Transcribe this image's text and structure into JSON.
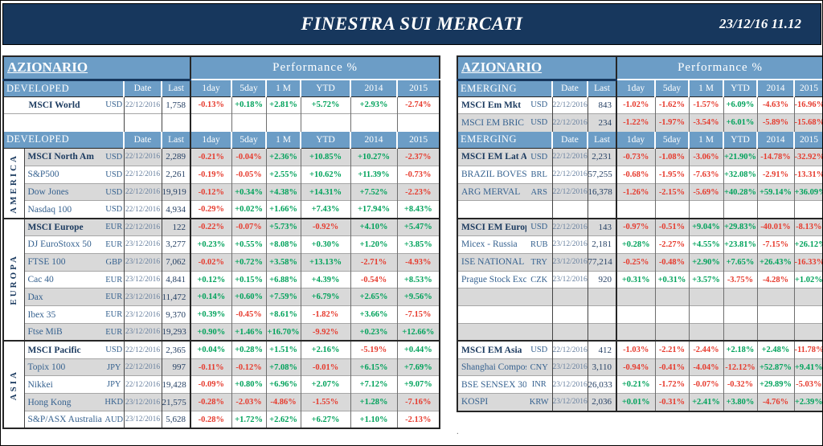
{
  "title_bar": {
    "title": "FINESTRA SUI MERCATI",
    "datetime": "23/12/16 11.12"
  },
  "colors": {
    "navy": "#17375d",
    "steel_blue": "#6c9dc6",
    "row_gray": "#d9d9d9",
    "positive_green": "#00a25b",
    "negative_red": "#e63b2e"
  },
  "columns": {
    "date_label": "Date",
    "last_label": "Last",
    "performance_title": "Performance  %",
    "perf_labels": [
      "1day",
      "5day",
      "1 M",
      "YTD",
      "2014",
      "2015"
    ]
  },
  "footnote": {
    "dot": "."
  },
  "left_panel": {
    "azionario_label": "AZIONARIO",
    "has_group_col": true,
    "rows": [
      {
        "t": "band"
      },
      {
        "t": "head",
        "label": "DEVELOPED"
      },
      {
        "t": "data",
        "name": "MSCI World",
        "bold": true,
        "center": true,
        "grouped": false,
        "ccy": "USD",
        "date": "22/12/2016",
        "last": "1,758",
        "perf": [
          "-0.13%",
          "+0.18%",
          "+2.81%",
          "+5.72%",
          "+2.93%",
          "-2.74%"
        ],
        "shade": false
      },
      {
        "t": "empty",
        "grouped": false,
        "shade": false
      },
      {
        "t": "head",
        "label": "DEVELOPED"
      },
      {
        "t": "data",
        "name": "MSCI North Am",
        "bold": true,
        "grouped": true,
        "group_start": {
          "label": "AMERICA",
          "span": 4
        },
        "ccy": "USD",
        "date": "22/12/2016",
        "last": "2,289",
        "perf": [
          "-0.21%",
          "-0.04%",
          "+2.36%",
          "+10.85%",
          "+10.27%",
          "-2.37%"
        ],
        "shade": true
      },
      {
        "t": "data",
        "name": "S&P500",
        "grouped": true,
        "ccy": "USD",
        "date": "22/12/2016",
        "last": "2,261",
        "perf": [
          "-0.19%",
          "-0.05%",
          "+2.55%",
          "+10.62%",
          "+11.39%",
          "-0.73%"
        ],
        "shade": false
      },
      {
        "t": "data",
        "name": "Dow Jones",
        "grouped": true,
        "ccy": "USD",
        "date": "22/12/2016",
        "last": "19,919",
        "perf": [
          "-0.12%",
          "+0.34%",
          "+4.38%",
          "+14.31%",
          "+7.52%",
          "-2.23%"
        ],
        "shade": true
      },
      {
        "t": "data",
        "name": "Nasdaq 100",
        "grouped": true,
        "ccy": "USD",
        "date": "22/12/2016",
        "last": "4,934",
        "perf": [
          "-0.29%",
          "+0.02%",
          "+1.66%",
          "+7.43%",
          "+17.94%",
          "+8.43%"
        ],
        "shade": false
      },
      {
        "t": "data",
        "name": "MSCI Europe",
        "bold": true,
        "thick_top": true,
        "grouped": true,
        "group_start": {
          "label": "EUROPA",
          "span": 7
        },
        "ccy": "EUR",
        "date": "22/12/2016",
        "last": "122",
        "perf": [
          "-0.22%",
          "-0.07%",
          "+5.73%",
          "-0.92%",
          "+4.10%",
          "+5.47%"
        ],
        "shade": true
      },
      {
        "t": "data",
        "name": "DJ EuroStoxx 50",
        "grouped": true,
        "ccy": "EUR",
        "date": "23/12/2016",
        "last": "3,277",
        "perf": [
          "+0.23%",
          "+0.55%",
          "+8.08%",
          "+0.30%",
          "+1.20%",
          "+3.85%"
        ],
        "shade": false
      },
      {
        "t": "data",
        "name": "FTSE 100",
        "grouped": true,
        "ccy": "GBP",
        "date": "23/12/2016",
        "last": "7,062",
        "perf": [
          "-0.02%",
          "+0.72%",
          "+3.58%",
          "+13.13%",
          "-2.71%",
          "-4.93%"
        ],
        "shade": true
      },
      {
        "t": "data",
        "name": "Cac 40",
        "grouped": true,
        "ccy": "EUR",
        "date": "23/12/2016",
        "last": "4,841",
        "perf": [
          "+0.12%",
          "+0.15%",
          "+6.88%",
          "+4.39%",
          "-0.54%",
          "+8.53%"
        ],
        "shade": false
      },
      {
        "t": "data",
        "name": "Dax",
        "grouped": true,
        "ccy": "EUR",
        "date": "23/12/2016",
        "last": "11,472",
        "perf": [
          "+0.14%",
          "+0.60%",
          "+7.59%",
          "+6.79%",
          "+2.65%",
          "+9.56%"
        ],
        "shade": true
      },
      {
        "t": "data",
        "name": "Ibex 35",
        "grouped": true,
        "ccy": "EUR",
        "date": "23/12/2016",
        "last": "9,370",
        "perf": [
          "+0.39%",
          "-0.45%",
          "+8.61%",
          "-1.82%",
          "+3.66%",
          "-7.15%"
        ],
        "shade": false
      },
      {
        "t": "data",
        "name": "Ftse MiB",
        "grouped": true,
        "ccy": "EUR",
        "date": "23/12/2016",
        "last": "19,293",
        "perf": [
          "+0.90%",
          "+1.46%",
          "+16.70%",
          "-9.92%",
          "+0.23%",
          "+12.66%"
        ],
        "shade": true
      },
      {
        "t": "data",
        "name": "MSCI Pacific",
        "bold": true,
        "thick_top": true,
        "grouped": true,
        "group_start": {
          "label": "ASIA",
          "span": 5
        },
        "ccy": "USD",
        "date": "22/12/2016",
        "last": "2,365",
        "perf": [
          "+0.04%",
          "+0.28%",
          "+1.51%",
          "+2.16%",
          "-5.19%",
          "+0.44%"
        ],
        "shade": false
      },
      {
        "t": "data",
        "name": "Topix 100",
        "grouped": true,
        "ccy": "JPY",
        "date": "22/12/2016",
        "last": "997",
        "perf": [
          "-0.11%",
          "-0.12%",
          "+7.08%",
          "-0.01%",
          "+6.15%",
          "+7.69%"
        ],
        "shade": true
      },
      {
        "t": "data",
        "name": "Nikkei",
        "grouped": true,
        "ccy": "JPY",
        "date": "22/12/2016",
        "last": "19,428",
        "perf": [
          "-0.09%",
          "+0.80%",
          "+6.96%",
          "+2.07%",
          "+7.12%",
          "+9.07%"
        ],
        "shade": false
      },
      {
        "t": "data",
        "name": "Hong Kong",
        "grouped": true,
        "ccy": "HKD",
        "date": "23/12/2016",
        "last": "21,575",
        "perf": [
          "-0.28%",
          "-2.03%",
          "-4.86%",
          "-1.55%",
          "+1.28%",
          "-7.16%"
        ],
        "shade": true
      },
      {
        "t": "data",
        "name": "S&P/ASX Australia",
        "grouped": true,
        "ccy": "AUD",
        "date": "23/12/2016",
        "last": "5,628",
        "perf": [
          "-0.28%",
          "+1.72%",
          "+2.62%",
          "+6.27%",
          "+1.10%",
          "-2.13%"
        ],
        "shade": false
      }
    ]
  },
  "right_panel": {
    "azionario_label": "AZIONARIO",
    "has_group_col": false,
    "rows": [
      {
        "t": "band"
      },
      {
        "t": "head",
        "label": "EMERGING"
      },
      {
        "t": "data",
        "name": "MSCI Em Mkt",
        "bold": true,
        "ccy": "USD",
        "date": "22/12/2016",
        "last": "843",
        "perf": [
          "-1.02%",
          "-1.62%",
          "-1.57%",
          "+6.09%",
          "-4.63%",
          "-16.96%"
        ],
        "shade": false
      },
      {
        "t": "data",
        "name": "MSCI EM BRIC",
        "ccy": "USD",
        "date": "22/12/2016",
        "last": "234",
        "perf": [
          "-1.22%",
          "-1.97%",
          "-3.54%",
          "+6.01%",
          "-5.89%",
          "-15.68%"
        ],
        "shade": true
      },
      {
        "t": "head",
        "label": "EMERGING"
      },
      {
        "t": "data",
        "name": "MSCI EM Lat Am",
        "bold": true,
        "ccy": "USD",
        "date": "22/12/2016",
        "last": "2,231",
        "perf": [
          "-0.73%",
          "-1.08%",
          "-3.06%",
          "+21.90%",
          "-14.78%",
          "-32.92%"
        ],
        "shade": true
      },
      {
        "t": "data",
        "name": "BRAZIL BOVESPA",
        "ccy": "BRL",
        "date": "22/12/2016",
        "last": "57,255",
        "perf": [
          "-0.68%",
          "-1.95%",
          "-7.63%",
          "+32.08%",
          "-2.91%",
          "-13.31%"
        ],
        "shade": false
      },
      {
        "t": "data",
        "name": "ARG MERVAL",
        "ccy": "ARS",
        "date": "22/12/2016",
        "last": "16,378",
        "perf": [
          "-1.26%",
          "-2.15%",
          "-5.69%",
          "+40.28%",
          "+59.14%",
          "+36.09%"
        ],
        "shade": true
      },
      {
        "t": "empty",
        "shade": false
      },
      {
        "t": "data",
        "name": "MSCI EM Europe",
        "bold": true,
        "thick_top": true,
        "ccy": "USD",
        "date": "22/12/2016",
        "last": "143",
        "perf": [
          "-0.97%",
          "-0.51%",
          "+9.04%",
          "+29.83%",
          "-40.01%",
          "-8.13%"
        ],
        "shade": true
      },
      {
        "t": "data",
        "name": "Micex - Russia",
        "ccy": "RUB",
        "date": "23/12/2016",
        "last": "2,181",
        "perf": [
          "+0.28%",
          "-2.27%",
          "+4.55%",
          "+23.81%",
          "-7.15%",
          "+26.12%"
        ],
        "shade": false
      },
      {
        "t": "data",
        "name": "ISE NATIONAL 100",
        "ccy": "TRY",
        "date": "23/12/2016",
        "last": "77,214",
        "perf": [
          "-0.25%",
          "-0.48%",
          "+2.90%",
          "+7.65%",
          "+26.43%",
          "-16.33%"
        ],
        "shade": true
      },
      {
        "t": "data",
        "name": "Prague Stock Exch.",
        "ccy": "CZK",
        "date": "23/12/2016",
        "last": "920",
        "perf": [
          "+0.31%",
          "+0.31%",
          "+3.57%",
          "-3.75%",
          "-4.28%",
          "+1.02%"
        ],
        "shade": false
      },
      {
        "t": "empty",
        "shade": true
      },
      {
        "t": "empty",
        "shade": false
      },
      {
        "t": "empty",
        "shade": true
      },
      {
        "t": "data",
        "name": "MSCI EM Asia",
        "bold": true,
        "thick_top": true,
        "ccy": "USD",
        "date": "22/12/2016",
        "last": "412",
        "perf": [
          "-1.03%",
          "-2.21%",
          "-2.44%",
          "+2.18%",
          "+2.48%",
          "-11.78%"
        ],
        "shade": false
      },
      {
        "t": "data",
        "name": "Shanghai Composite",
        "ccy": "CNY",
        "date": "23/12/2016",
        "last": "3,110",
        "perf": [
          "-0.94%",
          "-0.41%",
          "-4.04%",
          "-12.12%",
          "+52.87%",
          "+9.41%"
        ],
        "shade": true
      },
      {
        "t": "data",
        "name": "BSE SENSEX 30",
        "ccy": "INR",
        "date": "23/12/2016",
        "last": "26,033",
        "perf": [
          "+0.21%",
          "-1.72%",
          "-0.07%",
          "-0.32%",
          "+29.89%",
          "-5.03%"
        ],
        "shade": false
      },
      {
        "t": "data",
        "name": "KOSPI",
        "ccy": "KRW",
        "date": "23/12/2016",
        "last": "2,036",
        "perf": [
          "+0.01%",
          "-0.31%",
          "+2.41%",
          "+3.80%",
          "-4.76%",
          "+2.39%"
        ],
        "shade": true
      }
    ]
  }
}
